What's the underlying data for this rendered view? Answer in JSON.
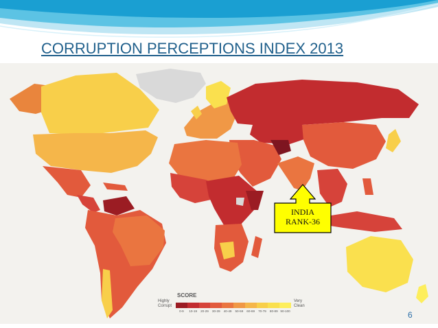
{
  "slide": {
    "title": "CORRUPTION PERCEPTIONS INDEX 2013",
    "page_number": "6"
  },
  "map": {
    "legend": {
      "title": "SCORE",
      "low_label": "Highly Corrupt",
      "high_label": "Very Clean",
      "ranges": [
        "0-9",
        "10-19",
        "20-29",
        "30-39",
        "40-49",
        "50-59",
        "60-69",
        "70-79",
        "80-89",
        "90-100"
      ],
      "colors": [
        "#9b1c23",
        "#c22c2f",
        "#d6433a",
        "#e25a3c",
        "#ea7540",
        "#f09846",
        "#f5b64a",
        "#f8cf4a",
        "#fae04e",
        "#fdee5c"
      ]
    },
    "callout": {
      "line1": "INDIA",
      "line2": "RANK-36",
      "fill": "#ffff00"
    },
    "colors": {
      "no_data": "#d9d9d9",
      "background": "#f3f2ee"
    }
  }
}
